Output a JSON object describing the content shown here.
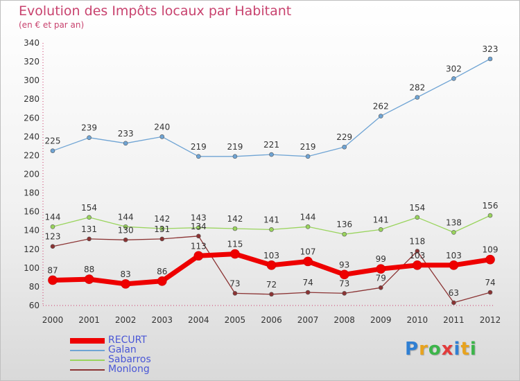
{
  "header": {
    "title": "Evolution des Impôts locaux par Habitant",
    "subtitle": "(en € et par an)"
  },
  "logo": {
    "text": "Proxiti",
    "colors": [
      "#2f7fd3",
      "#e8a31e",
      "#3cb54a",
      "#e23b3b",
      "#2f7fd3",
      "#e8a31e",
      "#3cb54a"
    ]
  },
  "chart_data": {
    "type": "line",
    "x": [
      "2000",
      "2001",
      "2002",
      "2003",
      "2004",
      "2005",
      "2006",
      "2007",
      "2008",
      "2009",
      "2010",
      "2011",
      "2012"
    ],
    "ylim": [
      60,
      340
    ],
    "yticks": [
      60,
      80,
      100,
      120,
      140,
      160,
      180,
      200,
      220,
      240,
      260,
      280,
      300,
      320,
      340
    ],
    "grid": false,
    "legend_position": "bottom-left",
    "series": [
      {
        "name": "RECURT",
        "color": "#ee0000",
        "values": [
          87,
          88,
          83,
          86,
          113,
          115,
          103,
          107,
          93,
          99,
          103,
          103,
          109
        ]
      },
      {
        "name": "Galan",
        "color": "#6fa4d4",
        "values": [
          225,
          239,
          233,
          240,
          219,
          219,
          221,
          219,
          229,
          262,
          282,
          302,
          323
        ]
      },
      {
        "name": "Sabarros",
        "color": "#99d45c",
        "values": [
          144,
          154,
          144,
          142,
          143,
          142,
          141,
          144,
          136,
          141,
          154,
          138,
          156
        ]
      },
      {
        "name": "Monlong",
        "color": "#8b3333",
        "values": [
          123,
          131,
          130,
          131,
          134,
          73,
          72,
          74,
          73,
          79,
          118,
          63,
          74
        ]
      }
    ]
  }
}
